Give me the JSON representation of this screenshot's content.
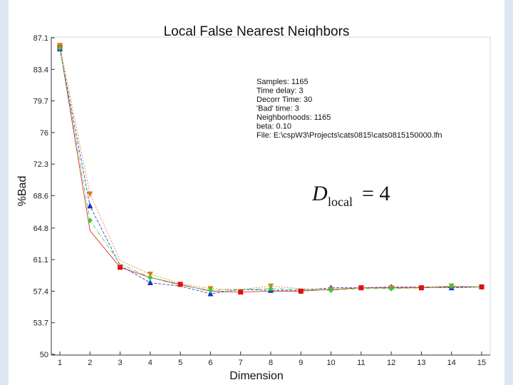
{
  "chart_data": {
    "type": "line",
    "title": "Local False Nearest Neighbors",
    "xlabel": "Dimension",
    "ylabel": "%Bad",
    "xlim": [
      1,
      15
    ],
    "ylim": [
      50,
      87.1
    ],
    "x_ticks": [
      "1",
      "2",
      "3",
      "4",
      "5",
      "6",
      "7",
      "8",
      "9",
      "10",
      "11",
      "12",
      "13",
      "14",
      "15"
    ],
    "y_ticks": [
      "87.1",
      "83.4",
      "79.7",
      "76",
      "72.3",
      "68.6",
      "64.8",
      "61.1",
      "57.4",
      "53.7",
      "50"
    ],
    "y_tick_values": [
      87.1,
      83.4,
      79.7,
      76,
      72.3,
      68.6,
      64.8,
      61.1,
      57.4,
      53.7,
      50
    ],
    "grid": false,
    "series": [
      {
        "color": "#e01010",
        "marker": "square",
        "x": [
          1,
          2,
          3,
          4,
          5,
          6,
          7,
          8,
          9,
          10,
          11,
          12,
          13,
          14,
          15
        ],
        "y": [
          86.0,
          64.5,
          60.2,
          59.0,
          58.2,
          57.4,
          57.3,
          57.4,
          57.4,
          57.6,
          57.8,
          57.8,
          57.8,
          57.9,
          57.9
        ]
      },
      {
        "color": "#1a2fd0",
        "marker": "triangle-up",
        "x": [
          1,
          2,
          3,
          4,
          5,
          6,
          7,
          8,
          9,
          10,
          11,
          12,
          13,
          14,
          15
        ],
        "y": [
          85.8,
          67.4,
          60.4,
          58.4,
          58.0,
          57.1,
          57.6,
          57.5,
          57.5,
          57.8,
          57.8,
          57.9,
          57.9,
          57.8,
          57.9
        ]
      },
      {
        "color": "#e07a10",
        "marker": "triangle-down",
        "x": [
          1,
          2,
          3,
          4,
          5,
          6,
          7,
          8,
          9,
          10,
          11,
          12,
          13,
          14,
          15
        ],
        "y": [
          86.2,
          68.8,
          61.0,
          59.4,
          58.3,
          57.7,
          57.6,
          58.0,
          57.7,
          57.6,
          57.8,
          57.8,
          57.9,
          58.0,
          57.9
        ]
      },
      {
        "color": "#30d030",
        "marker": "diamond",
        "x": [
          1,
          2,
          3,
          4,
          5,
          6,
          7,
          8,
          9,
          10,
          11,
          12,
          13,
          14,
          15
        ],
        "y": [
          85.9,
          65.7,
          60.6,
          59.0,
          58.1,
          57.5,
          57.6,
          57.7,
          57.6,
          57.5,
          57.7,
          57.7,
          57.8,
          58.0,
          57.9
        ]
      }
    ],
    "info_lines": [
      "Samples: 1165",
      "Time delay: 3",
      "Decorr Time: 30",
      "'Bad' time: 3",
      "Neighborhoods: 1165",
      "beta: 0.10",
      "File: E:\\cspW3\\Projects\\cats0815\\cats0815150000.lfn"
    ],
    "annotation": {
      "main": "D",
      "sub": "local",
      "rhs": "= 4"
    }
  }
}
